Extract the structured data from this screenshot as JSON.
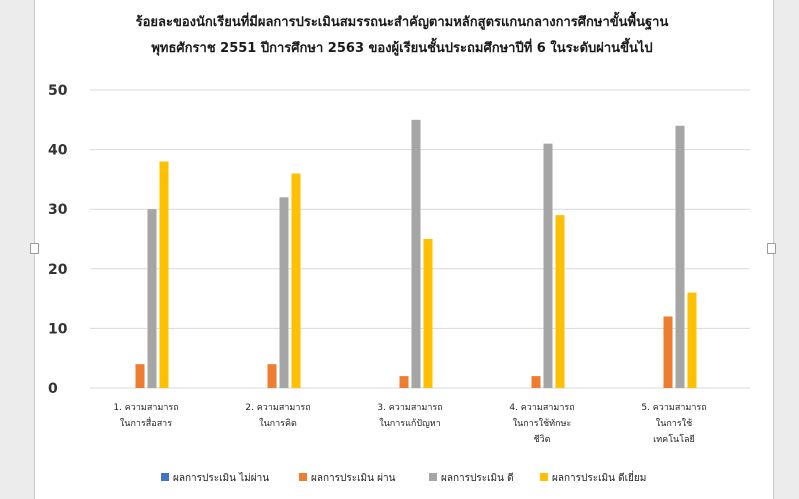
{
  "chart_data": {
    "type": "bar",
    "title": [
      "ร้อยละของนักเรียนที่มีผลการประเมินสมรรถนะสำคัญตามหลักสูตรแกนกลางการศึกษาขั้นพื้นฐาน",
      "พุทธศักราช 2551 ปีการศึกษา 2563 ของผู้เรียนชั้นประถมศึกษาปีที่ 6 ในระดับผ่านขึ้นไป"
    ],
    "categories": [
      [
        "1. ความสามารถ",
        "ในการสื่อสาร"
      ],
      [
        "2. ความสามารถ",
        "ในการคิด"
      ],
      [
        "3. ความสามารถ",
        "ในการแก้ปัญหา"
      ],
      [
        "4. ความสามารถ",
        "ในการใช้ทักษะ",
        "ชีวิต"
      ],
      [
        "5. ความสามารถ",
        "ในการใช้",
        "เทคโนโลยี"
      ]
    ],
    "series": [
      {
        "name": "ผลการประเมิน ไม่ผ่าน",
        "color": "#4472c4",
        "values": [
          0,
          0,
          0,
          0,
          0
        ]
      },
      {
        "name": "ผลการประเมิน ผ่าน",
        "color": "#ed7d31",
        "values": [
          4,
          4,
          2,
          2,
          12
        ]
      },
      {
        "name": "ผลการประเมิน ดี",
        "color": "#a5a5a5",
        "values": [
          30,
          32,
          45,
          41,
          44
        ]
      },
      {
        "name": "ผลการประเมิน ดีเยี่ยม",
        "color": "#ffc000",
        "values": [
          38,
          36,
          25,
          29,
          16
        ]
      }
    ],
    "yticks": [
      0,
      10,
      20,
      30,
      40,
      50
    ],
    "ylim": [
      0,
      50
    ],
    "grid": true,
    "legend": "bottom"
  }
}
